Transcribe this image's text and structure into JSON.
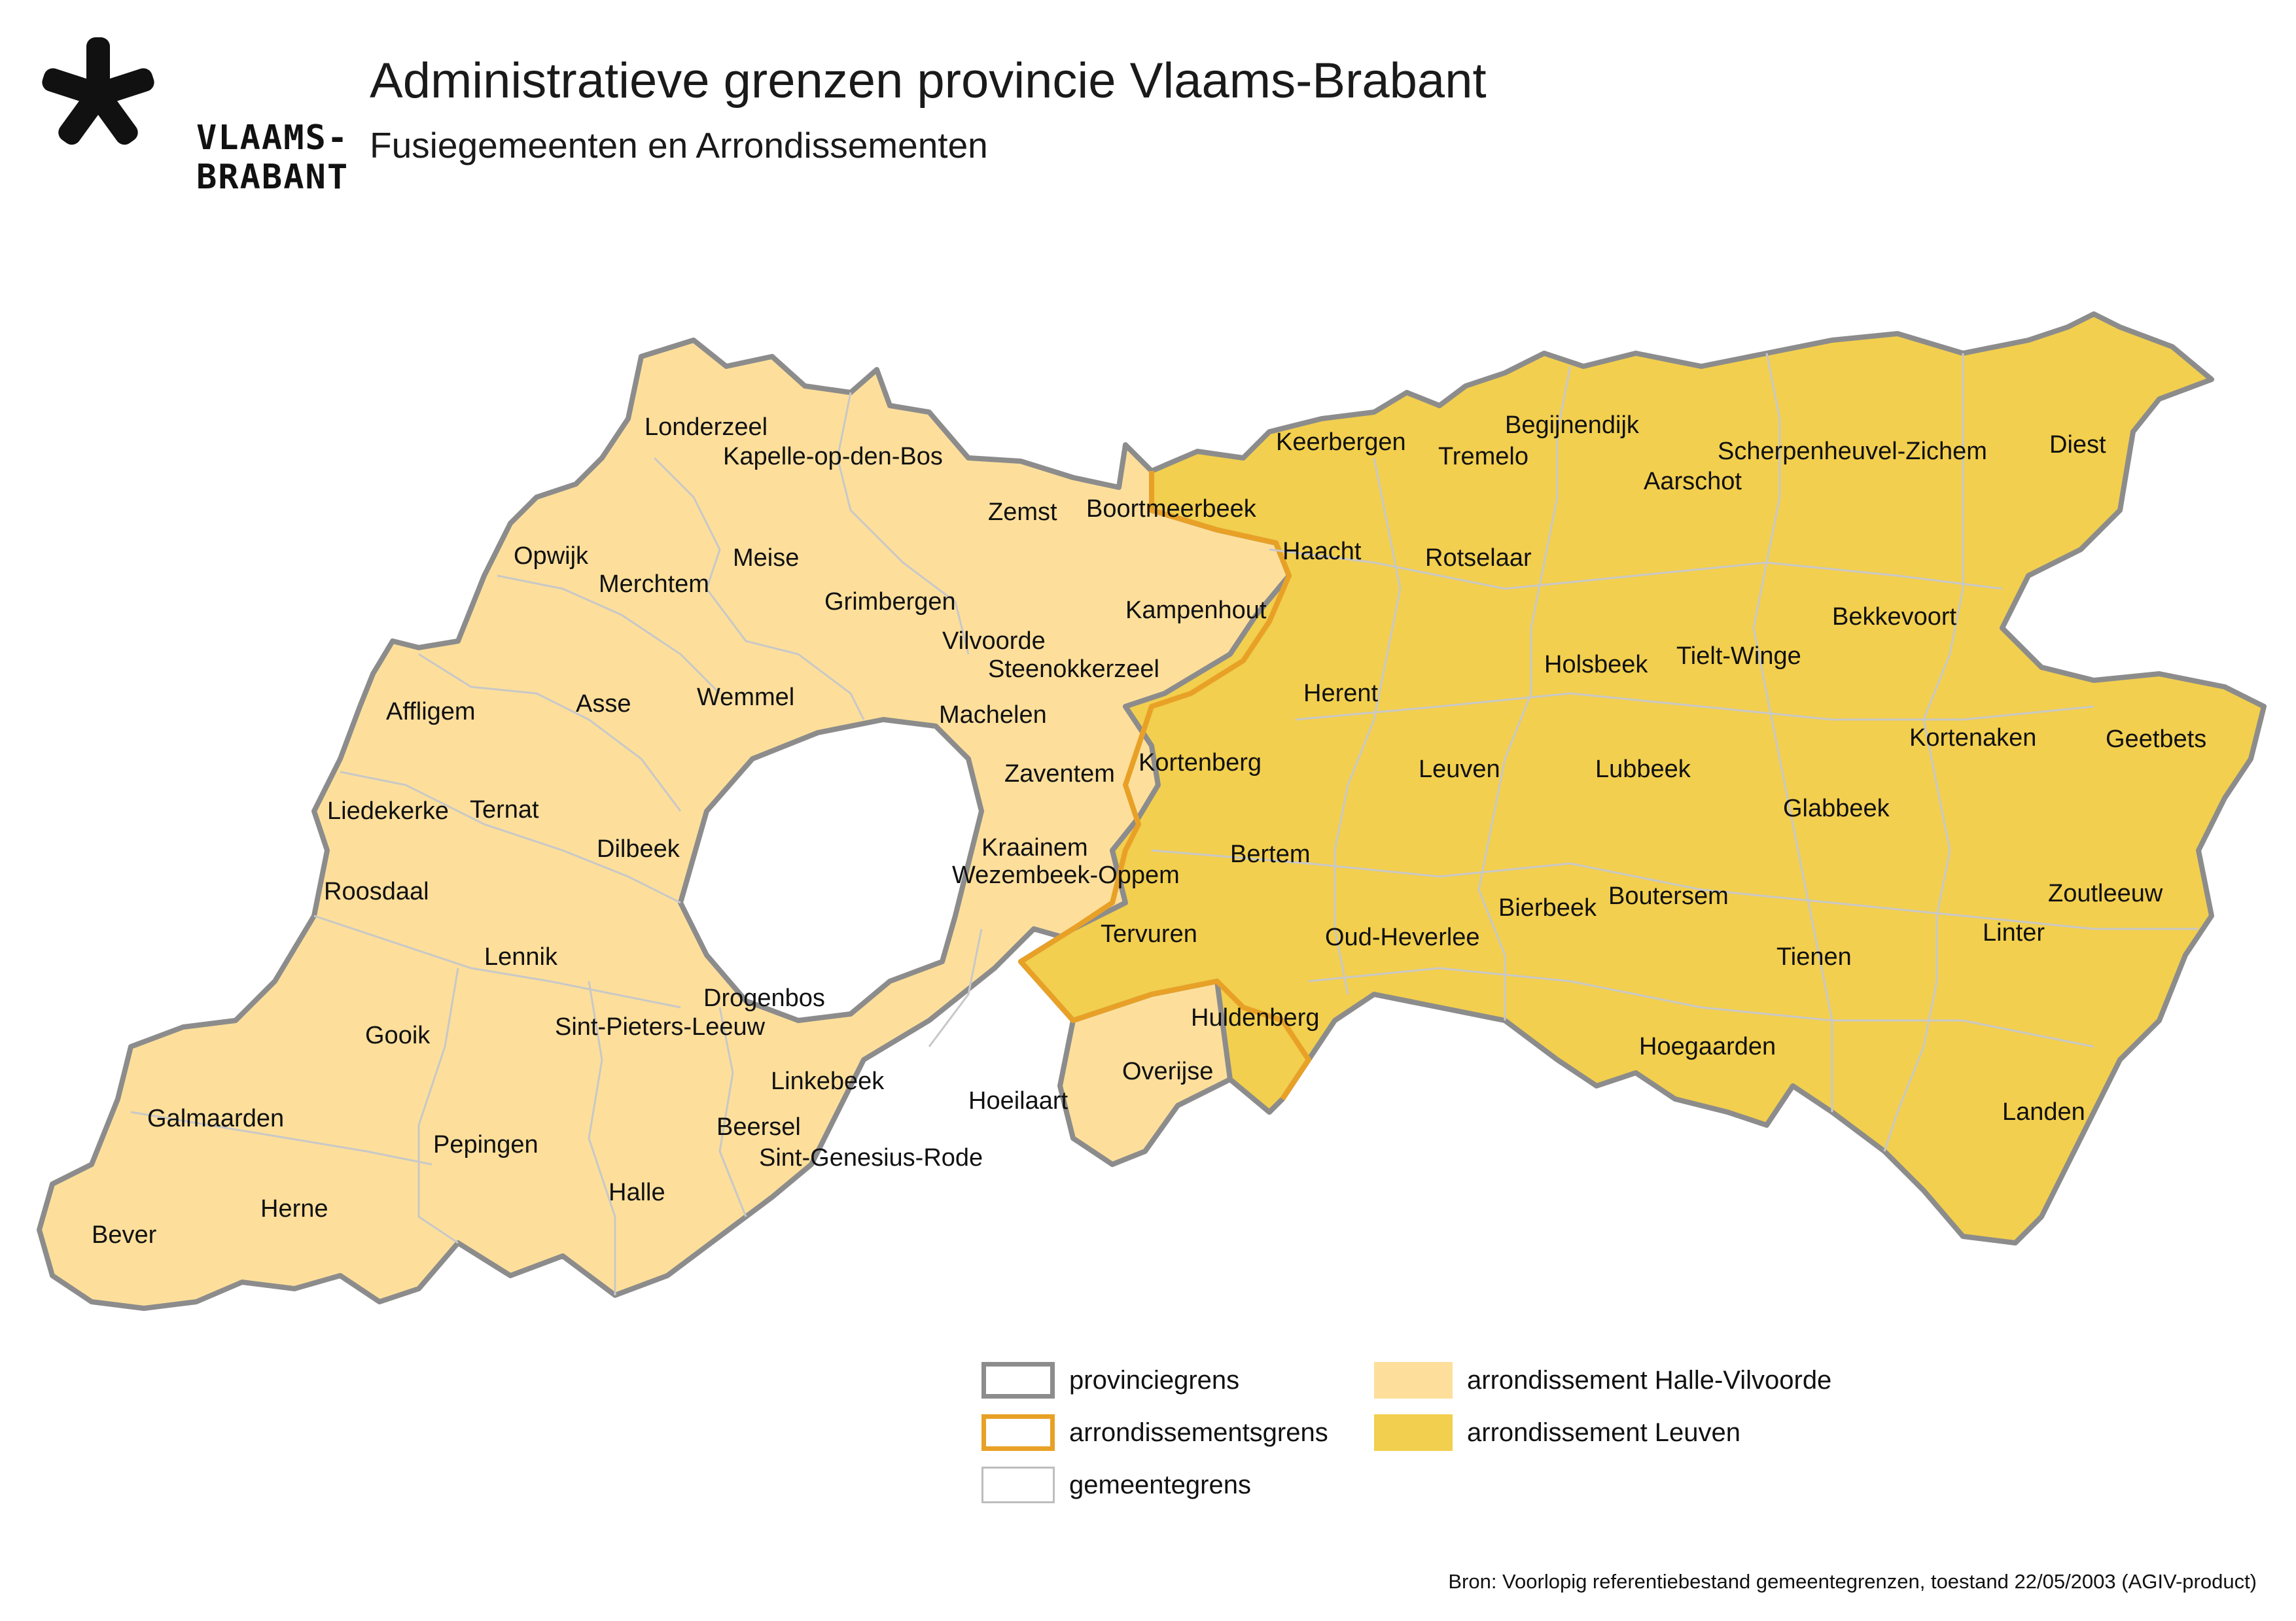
{
  "logo": {
    "line1": "VLAAMS-",
    "line2": "BRABANT",
    "icon": "asterisk-logo-icon"
  },
  "title": "Administratieve grenzen provincie Vlaams-Brabant",
  "subtitle": "Fusiegemeenten en Arrondissementen",
  "colors": {
    "halle_vilvoorde": "#fddf9b",
    "leuven": "#f2cf4e",
    "provinciegrens": "#8c8c8c",
    "arrondissementsgrens": "#e8a126",
    "gemeentegrens": "#bdbdbd"
  },
  "municipalities": {
    "halle_vilvoorde": [
      "Londerzeel",
      "Kapelle-op-den-Bos",
      "Zemst",
      "Opwijk",
      "Merchtem",
      "Meise",
      "Grimbergen",
      "Vilvoorde",
      "Steenokkerzeel",
      "Kampenhout",
      "Machelen",
      "Affligem",
      "Asse",
      "Wemmel",
      "Zaventem",
      "Liedekerke",
      "Ternat",
      "Dilbeek",
      "Roosdaal",
      "Kraainem",
      "Wezembeek-Oppem",
      "Lennik",
      "Drogenbos",
      "Sint-Pieters-Leeuw",
      "Gooik",
      "Linkebeek",
      "Galmaarden",
      "Pepingen",
      "Beersel",
      "Sint-Genesius-Rode",
      "Hoeilaart",
      "Overijse",
      "Halle",
      "Herne",
      "Bever"
    ],
    "leuven": [
      "Keerbergen",
      "Tremelo",
      "Begijnendijk",
      "Boortmeerbeek",
      "Haacht",
      "Rotselaar",
      "Aarschot",
      "Scherpenheuvel-Zichem",
      "Diest",
      "Herent",
      "Holsbeek",
      "Tielt-Winge",
      "Bekkevoort",
      "Kortenberg",
      "Leuven",
      "Lubbeek",
      "Kortenaken",
      "Geetbets",
      "Glabbeek",
      "Bertem",
      "Bierbeek",
      "Boutersem",
      "Zoutleeuw",
      "Tervuren",
      "Oud-Heverlee",
      "Tienen",
      "Linter",
      "Huldenberg",
      "Hoegaarden",
      "Landen"
    ]
  },
  "legend": {
    "provinciegrens": "provinciegrens",
    "arrondissementsgrens": "arrondissementsgrens",
    "gemeentegrens": "gemeentegrens",
    "halle_vilvoorde": "arrondissement Halle-Vilvoorde",
    "leuven": "arrondissement Leuven"
  },
  "source": "Bron: Voorlopig referentiebestand gemeentegrenzen, toestand 22/05/2003 (AGIV-product)"
}
